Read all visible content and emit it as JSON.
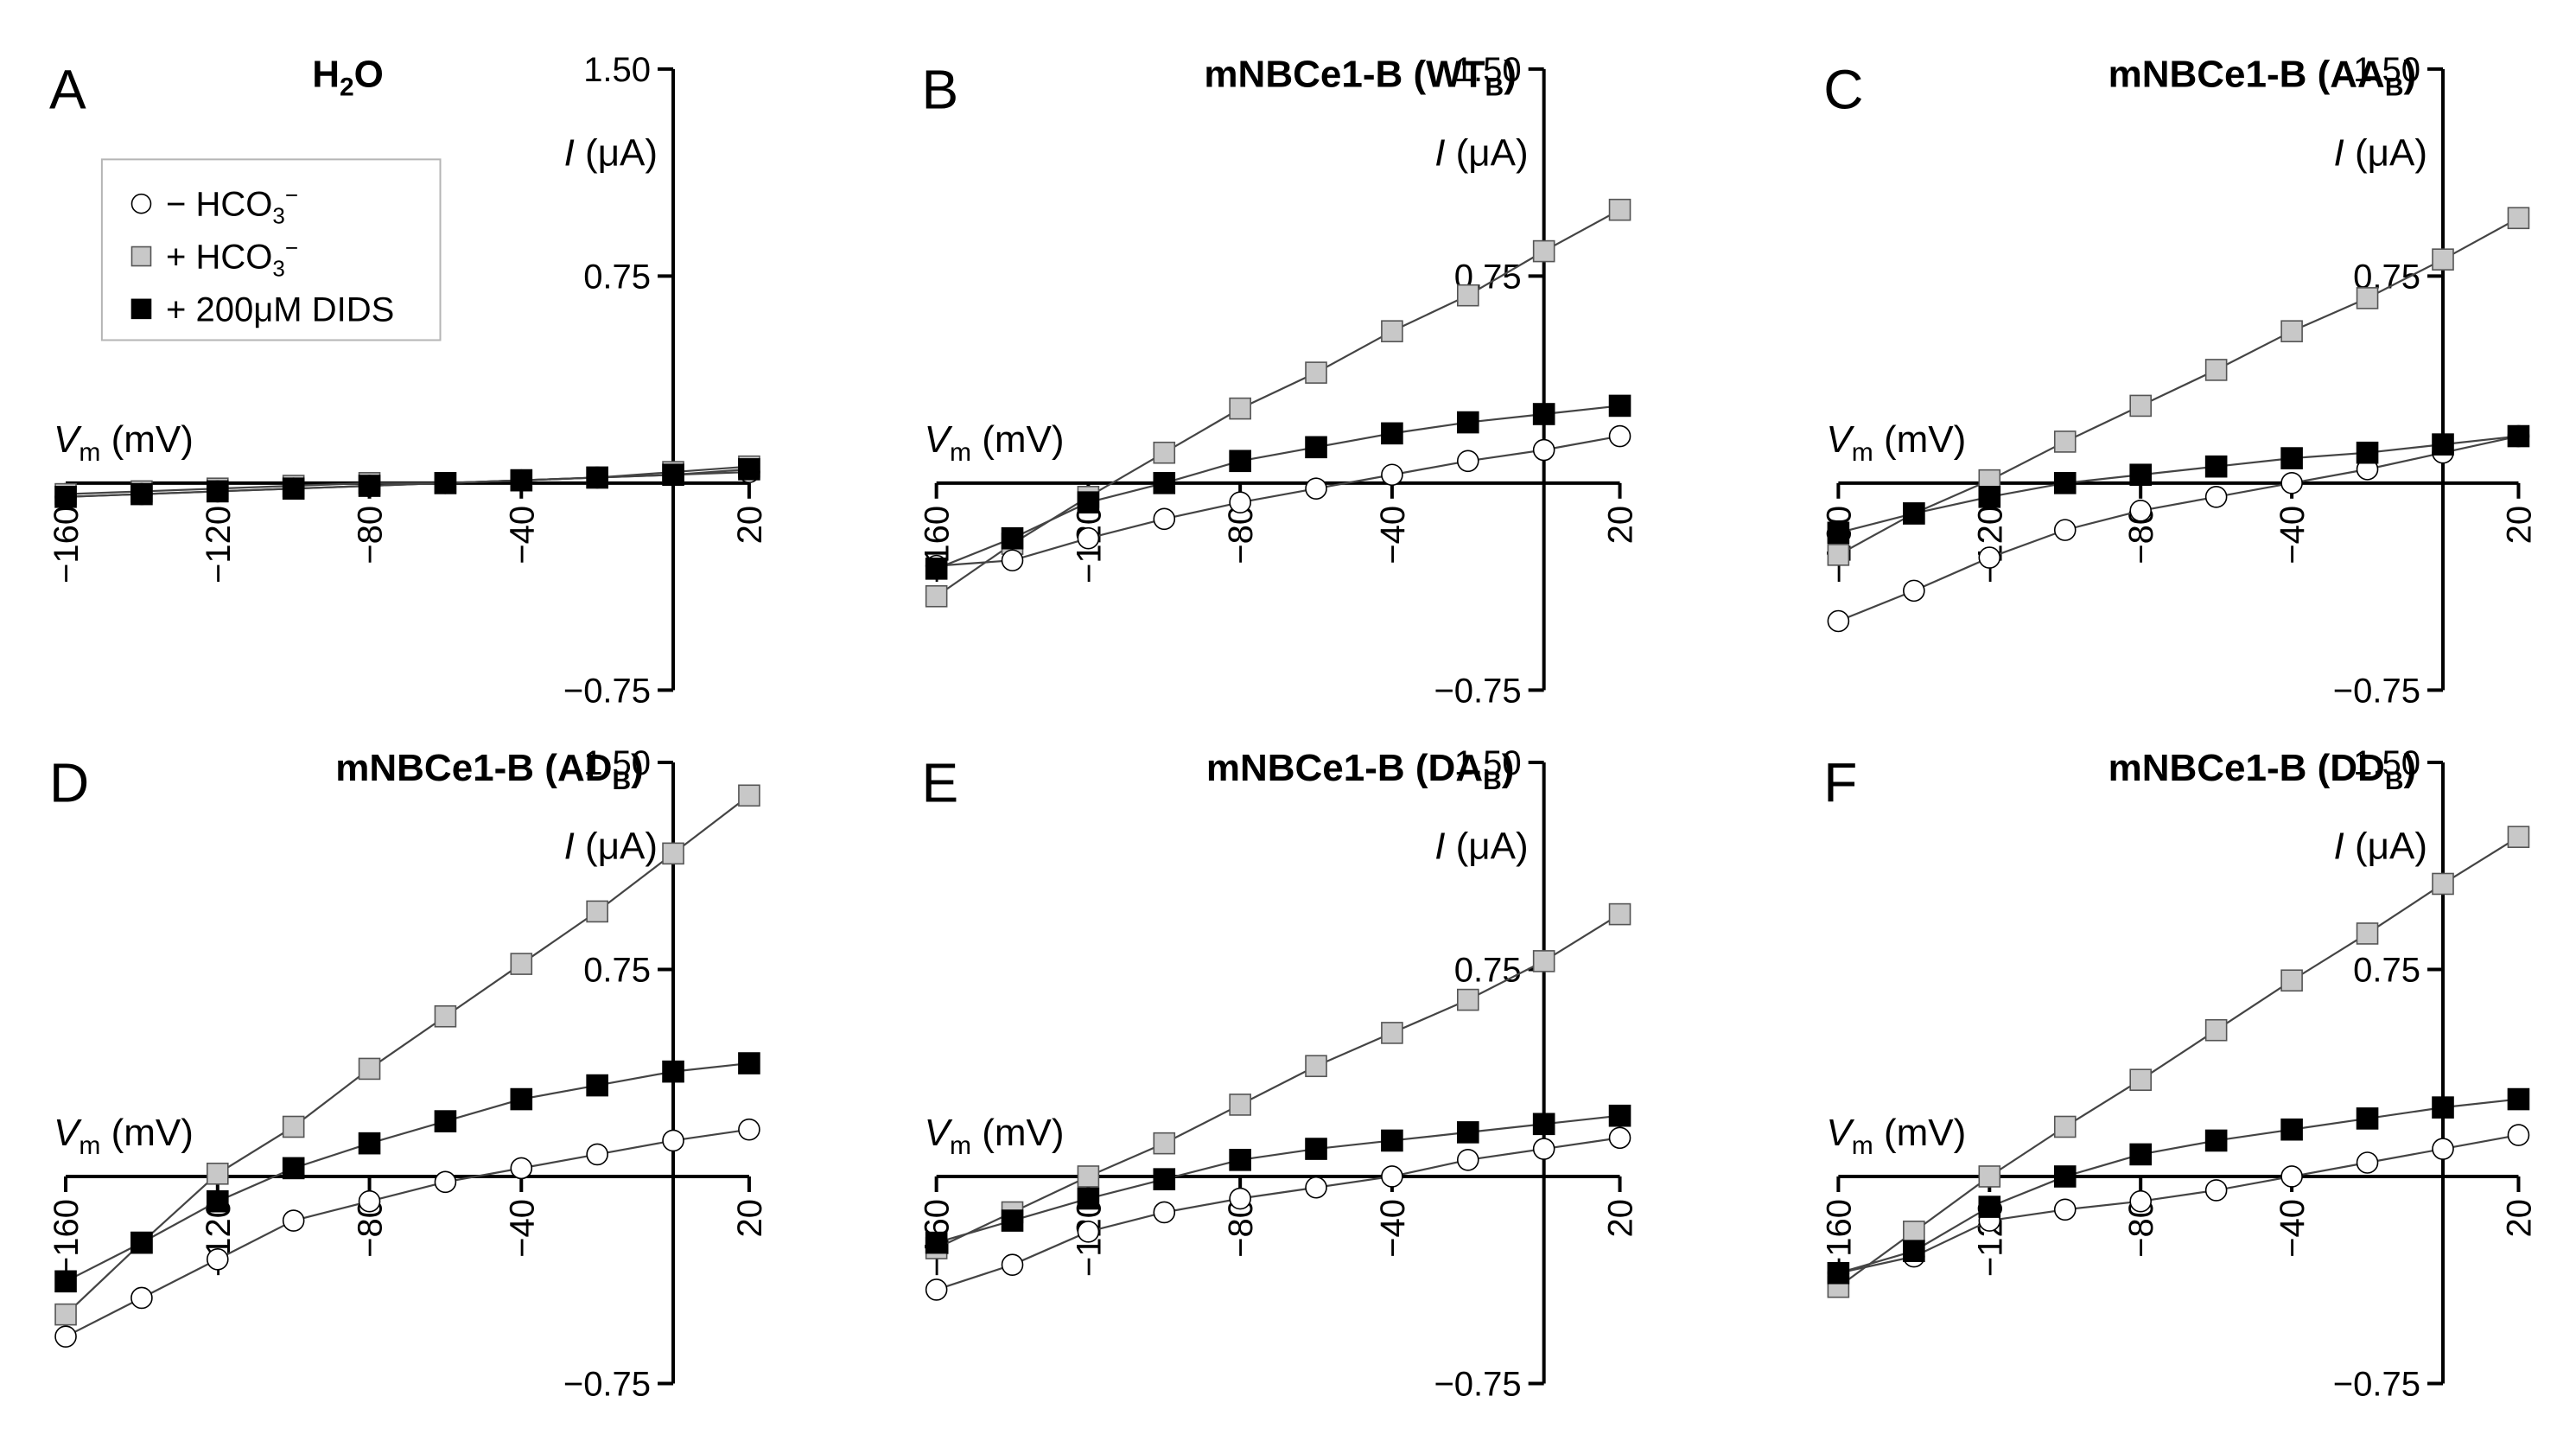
{
  "figure": {
    "legend": {
      "entries": [
        {
          "marker": "open-circle",
          "text": "− HCO",
          "sub": "3",
          "sup": "−"
        },
        {
          "marker": "gray-square",
          "text": "+ HCO",
          "sub": "3",
          "sup": "−"
        },
        {
          "marker": "black-square",
          "text": "+ 200μM DIDS",
          "sub": "",
          "sup": ""
        }
      ]
    },
    "axis_text": {
      "y_label_italic": "I",
      "y_label_rest": " (μA)",
      "x_label_italic": "V",
      "x_label_sub": "m",
      "x_label_rest": " (mV)"
    },
    "colors": {
      "open_circle_fill": "#ffffff",
      "gray_square_fill": "#c8c8c8",
      "black_square_fill": "#000000",
      "line_color": "#444444",
      "axis_color": "#000000"
    }
  },
  "chart_data": [
    {
      "type": "line",
      "panel": "A",
      "title_main": "H",
      "title_sub": "2",
      "title_tail": "O",
      "xlabel": "Vm (mV)",
      "ylabel": "I (μA)",
      "xlim": [
        -160,
        20
      ],
      "ylim": [
        -0.75,
        1.5
      ],
      "xticks": [
        -160,
        -120,
        -80,
        -40,
        20
      ],
      "xtick_labels": [
        "−160",
        "−120",
        "−80",
        "−40",
        "20"
      ],
      "yticks": [
        1.5,
        0.75,
        -0.75
      ],
      "ytick_labels": [
        "1.50",
        "0.75",
        "−0.75"
      ],
      "legend": true,
      "x": [
        -160,
        -140,
        -120,
        -100,
        -80,
        -60,
        -40,
        -20,
        0,
        20
      ],
      "series": [
        {
          "marker": "open-circle",
          "values": [
            -0.05,
            -0.04,
            -0.03,
            -0.02,
            -0.01,
            0.0,
            0.01,
            0.02,
            0.03,
            0.04
          ]
        },
        {
          "marker": "gray-square",
          "values": [
            -0.04,
            -0.03,
            -0.02,
            -0.01,
            0.0,
            0.0,
            0.01,
            0.02,
            0.04,
            0.06
          ]
        },
        {
          "marker": "black-square",
          "values": [
            -0.05,
            -0.04,
            -0.03,
            -0.02,
            -0.01,
            0.0,
            0.01,
            0.02,
            0.03,
            0.05
          ]
        }
      ]
    },
    {
      "type": "line",
      "panel": "B",
      "title_main": "mNBCe1-B (WT",
      "title_sub": "B",
      "title_tail": ")",
      "xlabel": "Vm (mV)",
      "ylabel": "I (μA)",
      "xlim": [
        -160,
        20
      ],
      "ylim": [
        -0.75,
        1.5
      ],
      "xticks": [
        -160,
        -120,
        -80,
        -40,
        20
      ],
      "xtick_labels": [
        "−160",
        "−120",
        "−80",
        "−40",
        "20"
      ],
      "yticks": [
        1.5,
        0.75,
        -0.75
      ],
      "ytick_labels": [
        "1.50",
        "0.75",
        "−0.75"
      ],
      "legend": false,
      "x": [
        -160,
        -140,
        -120,
        -100,
        -80,
        -60,
        -40,
        -20,
        0,
        20
      ],
      "series": [
        {
          "marker": "open-circle",
          "values": [
            -0.3,
            -0.28,
            -0.2,
            -0.13,
            -0.07,
            -0.02,
            0.03,
            0.08,
            0.12,
            0.17
          ]
        },
        {
          "marker": "gray-square",
          "values": [
            -0.41,
            -0.22,
            -0.05,
            0.11,
            0.27,
            0.4,
            0.55,
            0.68,
            0.84,
            0.99
          ]
        },
        {
          "marker": "black-square",
          "values": [
            -0.31,
            -0.2,
            -0.07,
            0.0,
            0.08,
            0.13,
            0.18,
            0.22,
            0.25,
            0.28
          ]
        }
      ]
    },
    {
      "type": "line",
      "panel": "C",
      "title_main": "mNBCe1-B (AA",
      "title_sub": "B",
      "title_tail": ")",
      "xlabel": "Vm (mV)",
      "ylabel": "I (μA)",
      "xlim": [
        -160,
        20
      ],
      "ylim": [
        -0.75,
        1.5
      ],
      "xticks": [
        -160,
        -120,
        -80,
        -40,
        20
      ],
      "xtick_labels": [
        "−160",
        "−120",
        "−80",
        "−40",
        "20"
      ],
      "yticks": [
        1.5,
        0.75,
        -0.75
      ],
      "ytick_labels": [
        "1.50",
        "0.75",
        "−0.75"
      ],
      "legend": false,
      "x": [
        -160,
        -140,
        -120,
        -100,
        -80,
        -60,
        -40,
        -20,
        0,
        20
      ],
      "series": [
        {
          "marker": "open-circle",
          "values": [
            -0.5,
            -0.39,
            -0.27,
            -0.17,
            -0.1,
            -0.05,
            0.0,
            0.05,
            0.11,
            0.17
          ]
        },
        {
          "marker": "gray-square",
          "values": [
            -0.26,
            -0.11,
            0.01,
            0.15,
            0.28,
            0.41,
            0.55,
            0.67,
            0.81,
            0.96
          ]
        },
        {
          "marker": "black-square",
          "values": [
            -0.18,
            -0.11,
            -0.05,
            0.0,
            0.03,
            0.06,
            0.09,
            0.11,
            0.14,
            0.17
          ]
        }
      ]
    },
    {
      "type": "line",
      "panel": "D",
      "title_main": "mNBCe1-B (AD",
      "title_sub": "B",
      "title_tail": ")",
      "xlabel": "Vm (mV)",
      "ylabel": "I (μA)",
      "xlim": [
        -160,
        20
      ],
      "ylim": [
        -0.75,
        1.5
      ],
      "xticks": [
        -160,
        -120,
        -80,
        -40,
        20
      ],
      "xtick_labels": [
        "−160",
        "−120",
        "−80",
        "−40",
        "20"
      ],
      "yticks": [
        1.5,
        0.75,
        -0.75
      ],
      "ytick_labels": [
        "1.50",
        "0.75",
        "−0.75"
      ],
      "legend": false,
      "x": [
        -160,
        -140,
        -120,
        -100,
        -80,
        -60,
        -40,
        -20,
        0,
        20
      ],
      "series": [
        {
          "marker": "open-circle",
          "values": [
            -0.58,
            -0.44,
            -0.3,
            -0.16,
            -0.09,
            -0.02,
            0.03,
            0.08,
            0.13,
            0.17
          ]
        },
        {
          "marker": "gray-square",
          "values": [
            -0.5,
            -0.24,
            0.01,
            0.18,
            0.39,
            0.58,
            0.77,
            0.96,
            1.17,
            1.38
          ]
        },
        {
          "marker": "black-square",
          "values": [
            -0.38,
            -0.24,
            -0.09,
            0.03,
            0.12,
            0.2,
            0.28,
            0.33,
            0.38,
            0.41
          ]
        }
      ]
    },
    {
      "type": "line",
      "panel": "E",
      "title_main": "mNBCe1-B (DA",
      "title_sub": "B",
      "title_tail": ")",
      "xlabel": "Vm (mV)",
      "ylabel": "I (μA)",
      "xlim": [
        -160,
        20
      ],
      "ylim": [
        -0.75,
        1.5
      ],
      "xticks": [
        -160,
        -120,
        -80,
        -40,
        20
      ],
      "xtick_labels": [
        "−160",
        "−120",
        "−80",
        "−40",
        "20"
      ],
      "yticks": [
        1.5,
        0.75,
        -0.75
      ],
      "ytick_labels": [
        "1.50",
        "0.75",
        "−0.75"
      ],
      "legend": false,
      "x": [
        -160,
        -140,
        -120,
        -100,
        -80,
        -60,
        -40,
        -20,
        0,
        20
      ],
      "series": [
        {
          "marker": "open-circle",
          "values": [
            -0.41,
            -0.32,
            -0.2,
            -0.13,
            -0.08,
            -0.04,
            0.0,
            0.06,
            0.1,
            0.14
          ]
        },
        {
          "marker": "gray-square",
          "values": [
            -0.26,
            -0.13,
            0.0,
            0.12,
            0.26,
            0.4,
            0.52,
            0.64,
            0.78,
            0.95
          ]
        },
        {
          "marker": "black-square",
          "values": [
            -0.24,
            -0.16,
            -0.08,
            -0.01,
            0.06,
            0.1,
            0.13,
            0.16,
            0.19,
            0.22
          ]
        }
      ]
    },
    {
      "type": "line",
      "panel": "F",
      "title_main": "mNBCe1-B (DD",
      "title_sub": "B",
      "title_tail": ")",
      "xlabel": "Vm (mV)",
      "ylabel": "I (μA)",
      "xlim": [
        -160,
        20
      ],
      "ylim": [
        -0.75,
        1.5
      ],
      "xticks": [
        -160,
        -120,
        -80,
        -40,
        20
      ],
      "xtick_labels": [
        "−160",
        "−120",
        "−80",
        "−40",
        "20"
      ],
      "yticks": [
        1.5,
        0.75,
        -0.75
      ],
      "ytick_labels": [
        "1.50",
        "0.75",
        "−0.75"
      ],
      "legend": false,
      "x": [
        -160,
        -140,
        -120,
        -100,
        -80,
        -60,
        -40,
        -20,
        0,
        20
      ],
      "series": [
        {
          "marker": "open-circle",
          "values": [
            -0.35,
            -0.29,
            -0.16,
            -0.12,
            -0.09,
            -0.05,
            0.0,
            0.05,
            0.1,
            0.15
          ]
        },
        {
          "marker": "gray-square",
          "values": [
            -0.4,
            -0.2,
            0.0,
            0.18,
            0.35,
            0.53,
            0.71,
            0.88,
            1.06,
            1.23
          ]
        },
        {
          "marker": "black-square",
          "values": [
            -0.35,
            -0.27,
            -0.11,
            0.0,
            0.08,
            0.13,
            0.17,
            0.21,
            0.25,
            0.28
          ]
        }
      ]
    }
  ]
}
